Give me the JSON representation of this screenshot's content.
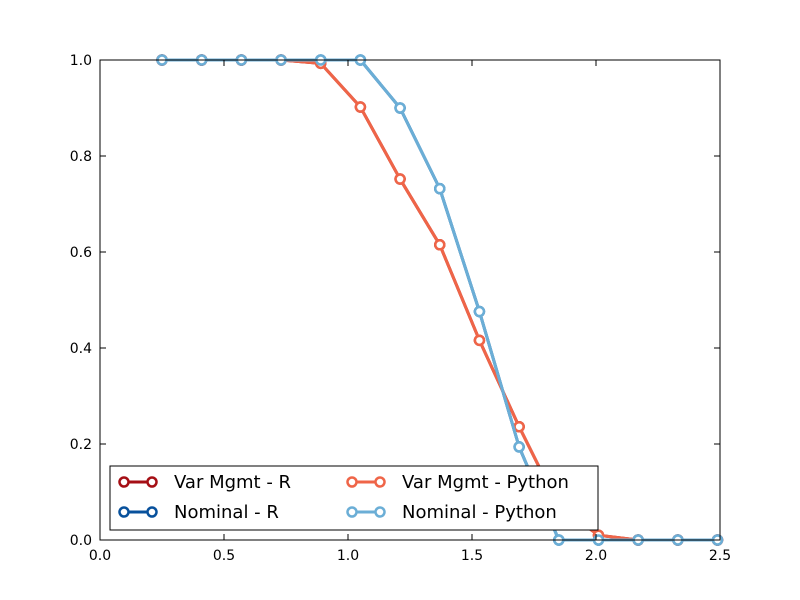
{
  "chart_data": {
    "type": "line",
    "title": "",
    "xlabel": "",
    "ylabel": "",
    "xlim": [
      0.0,
      2.5
    ],
    "ylim": [
      0.0,
      1.0
    ],
    "x_ticks": [
      "0.0",
      "0.5",
      "1.0",
      "1.5",
      "2.0",
      "2.5"
    ],
    "y_ticks": [
      "0.0",
      "0.2",
      "0.4",
      "0.6",
      "0.8",
      "1.0"
    ],
    "grid": false,
    "legend": "lower-left",
    "series": [
      {
        "name": "Var Mgmt - R",
        "color": "#a50f15",
        "x": [
          0.25,
          0.41,
          0.57,
          0.73,
          0.89,
          1.05,
          1.21,
          1.37,
          1.53,
          1.69,
          1.85,
          2.01,
          2.17,
          2.33,
          2.49
        ],
        "y": [
          1.0,
          1.0,
          1.0,
          1.0,
          0.993,
          0.902,
          0.752,
          0.615,
          0.416,
          0.236,
          0.07,
          0.01,
          0.0,
          0.0,
          0.0
        ]
      },
      {
        "name": "Nominal - R",
        "color": "#08519c",
        "x": [
          0.25,
          0.41,
          0.57,
          0.73,
          0.89,
          1.05,
          1.21,
          1.37,
          1.53,
          1.69,
          1.85,
          2.01,
          2.17,
          2.33,
          2.49
        ],
        "y": [
          1.0,
          1.0,
          1.0,
          1.0,
          1.0,
          1.0,
          0.9,
          0.732,
          0.476,
          0.194,
          0.0,
          0.0,
          0.0,
          0.0,
          0.0
        ]
      },
      {
        "name": "Var Mgmt - Python",
        "color": "#ef6548",
        "x": [
          0.25,
          0.41,
          0.57,
          0.73,
          0.89,
          1.05,
          1.21,
          1.37,
          1.53,
          1.69,
          1.85,
          2.01,
          2.17,
          2.33,
          2.49
        ],
        "y": [
          1.0,
          1.0,
          1.0,
          1.0,
          0.993,
          0.902,
          0.752,
          0.615,
          0.416,
          0.236,
          0.07,
          0.01,
          0.0,
          0.0,
          0.0
        ]
      },
      {
        "name": "Nominal - Python",
        "color": "#6baed6",
        "x": [
          0.25,
          0.41,
          0.57,
          0.73,
          0.89,
          1.05,
          1.21,
          1.37,
          1.53,
          1.69,
          1.85,
          2.01,
          2.17,
          2.33,
          2.49
        ],
        "y": [
          1.0,
          1.0,
          1.0,
          1.0,
          1.0,
          1.0,
          0.9,
          0.732,
          0.476,
          0.194,
          0.0,
          0.0,
          0.0,
          0.0,
          0.0
        ]
      }
    ]
  }
}
